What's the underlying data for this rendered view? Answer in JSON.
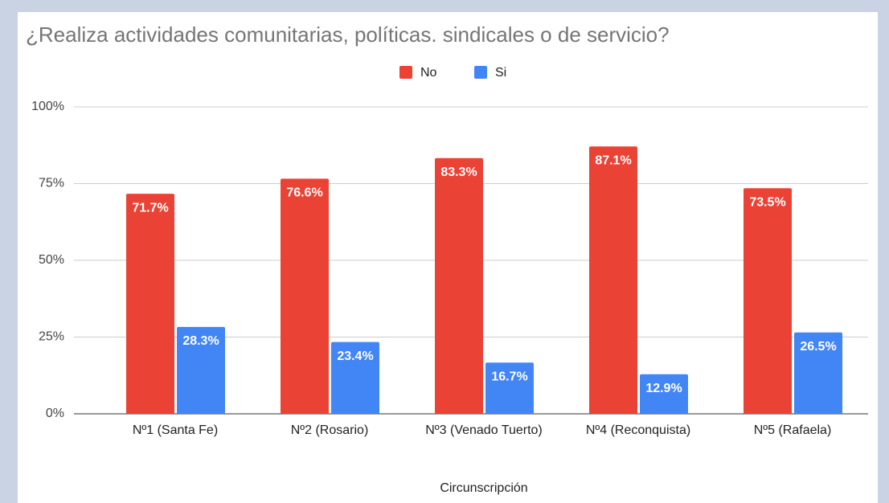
{
  "chart_data": {
    "type": "bar",
    "title": "¿Realiza actividades comunitarias, políticas. sindicales o de servicio?",
    "x_label": "Circunscripción",
    "categories": [
      "Nº1 (Santa Fe)",
      "Nº2 (Rosario)",
      "Nº3 (Venado Tuerto)",
      "Nº4 (Reconquista)",
      "Nº5 (Rafaela)"
    ],
    "series": [
      {
        "name": "No",
        "color": "#ea4335",
        "values": [
          71.7,
          76.6,
          83.3,
          87.1,
          73.5
        ],
        "value_labels": [
          "71.7%",
          "76.6%",
          "83.3%",
          "87.1%",
          "73.5%"
        ]
      },
      {
        "name": "Si",
        "color": "#4285f4",
        "values": [
          28.3,
          23.4,
          16.7,
          12.9,
          26.5
        ],
        "value_labels": [
          "28.3%",
          "23.4%",
          "16.7%",
          "12.9%",
          "26.5%"
        ]
      }
    ],
    "ylim": [
      0,
      100
    ],
    "yticks": [
      {
        "value": 0,
        "label": "0%"
      },
      {
        "value": 25,
        "label": "25%"
      },
      {
        "value": 50,
        "label": "50%"
      },
      {
        "value": 75,
        "label": "75%"
      },
      {
        "value": 100,
        "label": "100%"
      }
    ],
    "grid": true,
    "legend": "top"
  }
}
